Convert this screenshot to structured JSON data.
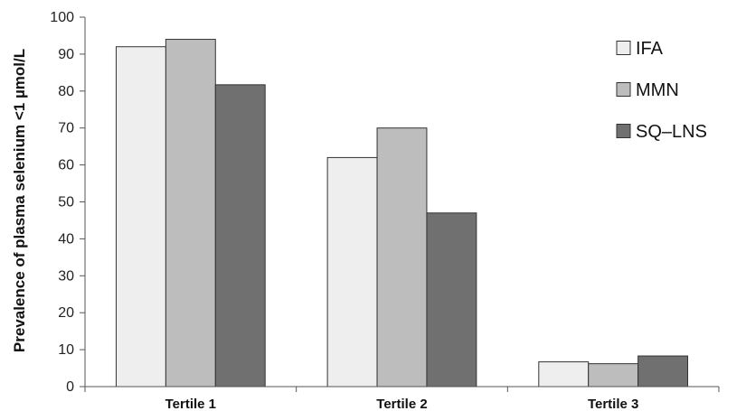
{
  "chart_data": {
    "type": "bar",
    "title": "",
    "xlabel": "",
    "ylabel": "Prevalence of plasma selenium <1 µmol/L",
    "ylim": [
      0,
      100
    ],
    "yticks": [
      0,
      10,
      20,
      30,
      40,
      50,
      60,
      70,
      80,
      90,
      100
    ],
    "grid": false,
    "legend_position": "top-right",
    "categories": [
      "Tertile 1",
      "Tertile 2",
      "Tertile 3"
    ],
    "series": [
      {
        "name": "IFA",
        "color": "#eeeeee",
        "values": [
          92,
          62,
          6.7
        ]
      },
      {
        "name": "MMN",
        "color": "#bdbdbd",
        "values": [
          94,
          70,
          6.2
        ]
      },
      {
        "name": "SQ–LNS",
        "color": "#707070",
        "values": [
          81.7,
          47,
          8.3
        ]
      }
    ]
  }
}
